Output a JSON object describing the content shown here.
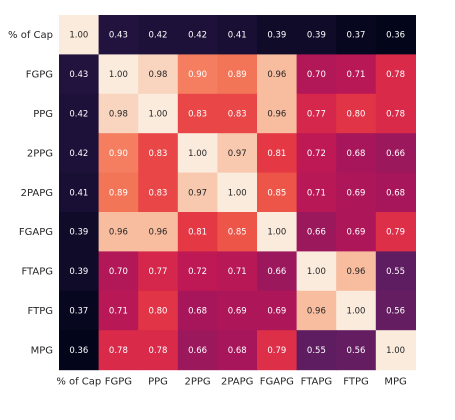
{
  "chart_data": {
    "type": "heatmap",
    "title": "",
    "xlabel": "",
    "ylabel": "",
    "labels": [
      "% of Cap",
      "FGPG",
      "PPG",
      "2PPG",
      "2PAPG",
      "FGAPG",
      "FTAPG",
      "FTPG",
      "MPG"
    ],
    "values": [
      [
        1.0,
        0.43,
        0.42,
        0.42,
        0.41,
        0.39,
        0.39,
        0.37,
        0.36
      ],
      [
        0.43,
        1.0,
        0.98,
        0.9,
        0.89,
        0.96,
        0.7,
        0.71,
        0.78
      ],
      [
        0.42,
        0.98,
        1.0,
        0.83,
        0.83,
        0.96,
        0.77,
        0.8,
        0.78
      ],
      [
        0.42,
        0.9,
        0.83,
        1.0,
        0.97,
        0.81,
        0.72,
        0.68,
        0.66
      ],
      [
        0.41,
        0.89,
        0.83,
        0.97,
        1.0,
        0.85,
        0.71,
        0.69,
        0.68
      ],
      [
        0.39,
        0.96,
        0.96,
        0.81,
        0.85,
        1.0,
        0.66,
        0.69,
        0.79
      ],
      [
        0.39,
        0.7,
        0.77,
        0.72,
        0.71,
        0.66,
        1.0,
        0.96,
        0.55
      ],
      [
        0.37,
        0.71,
        0.8,
        0.68,
        0.69,
        0.69,
        0.96,
        1.0,
        0.56
      ],
      [
        0.36,
        0.78,
        0.78,
        0.66,
        0.68,
        0.79,
        0.55,
        0.56,
        1.0
      ]
    ],
    "colormap": "rocket",
    "annotation_format": "0.00",
    "grid": false,
    "legend": "none"
  }
}
